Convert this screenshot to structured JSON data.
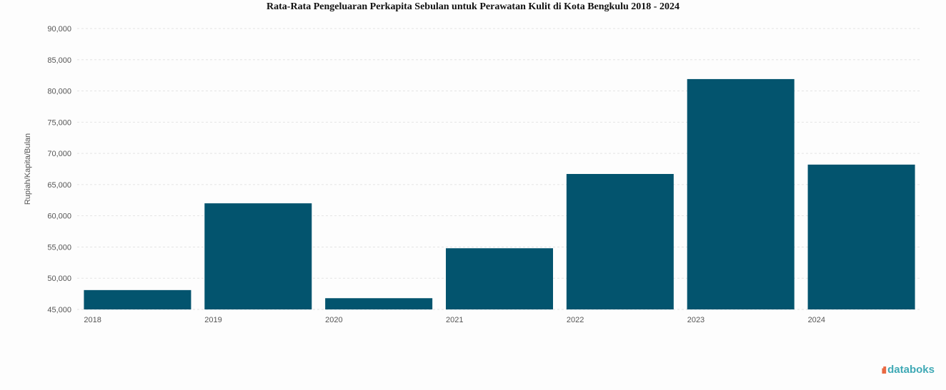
{
  "chart_data": {
    "type": "bar",
    "title": "Rata-Rata Pengeluaran Perkapita Sebulan untuk Perawatan Kulit di Kota Bengkulu 2018 - 2024",
    "xlabel": "",
    "ylabel": "Rupiah/Kapita/Bulan",
    "categories": [
      "2018",
      "2019",
      "2020",
      "2021",
      "2022",
      "2023",
      "2024"
    ],
    "values": [
      48100,
      62000,
      46800,
      54800,
      66700,
      81900,
      68200
    ],
    "ylim": [
      45000,
      90000
    ],
    "yticks": [
      "45,000",
      "50,000",
      "55,000",
      "60,000",
      "65,000",
      "70,000",
      "75,000",
      "80,000",
      "85,000",
      "90,000"
    ],
    "grid": true,
    "bar_color": "#03546e"
  },
  "branding": {
    "logo": "databoks"
  }
}
